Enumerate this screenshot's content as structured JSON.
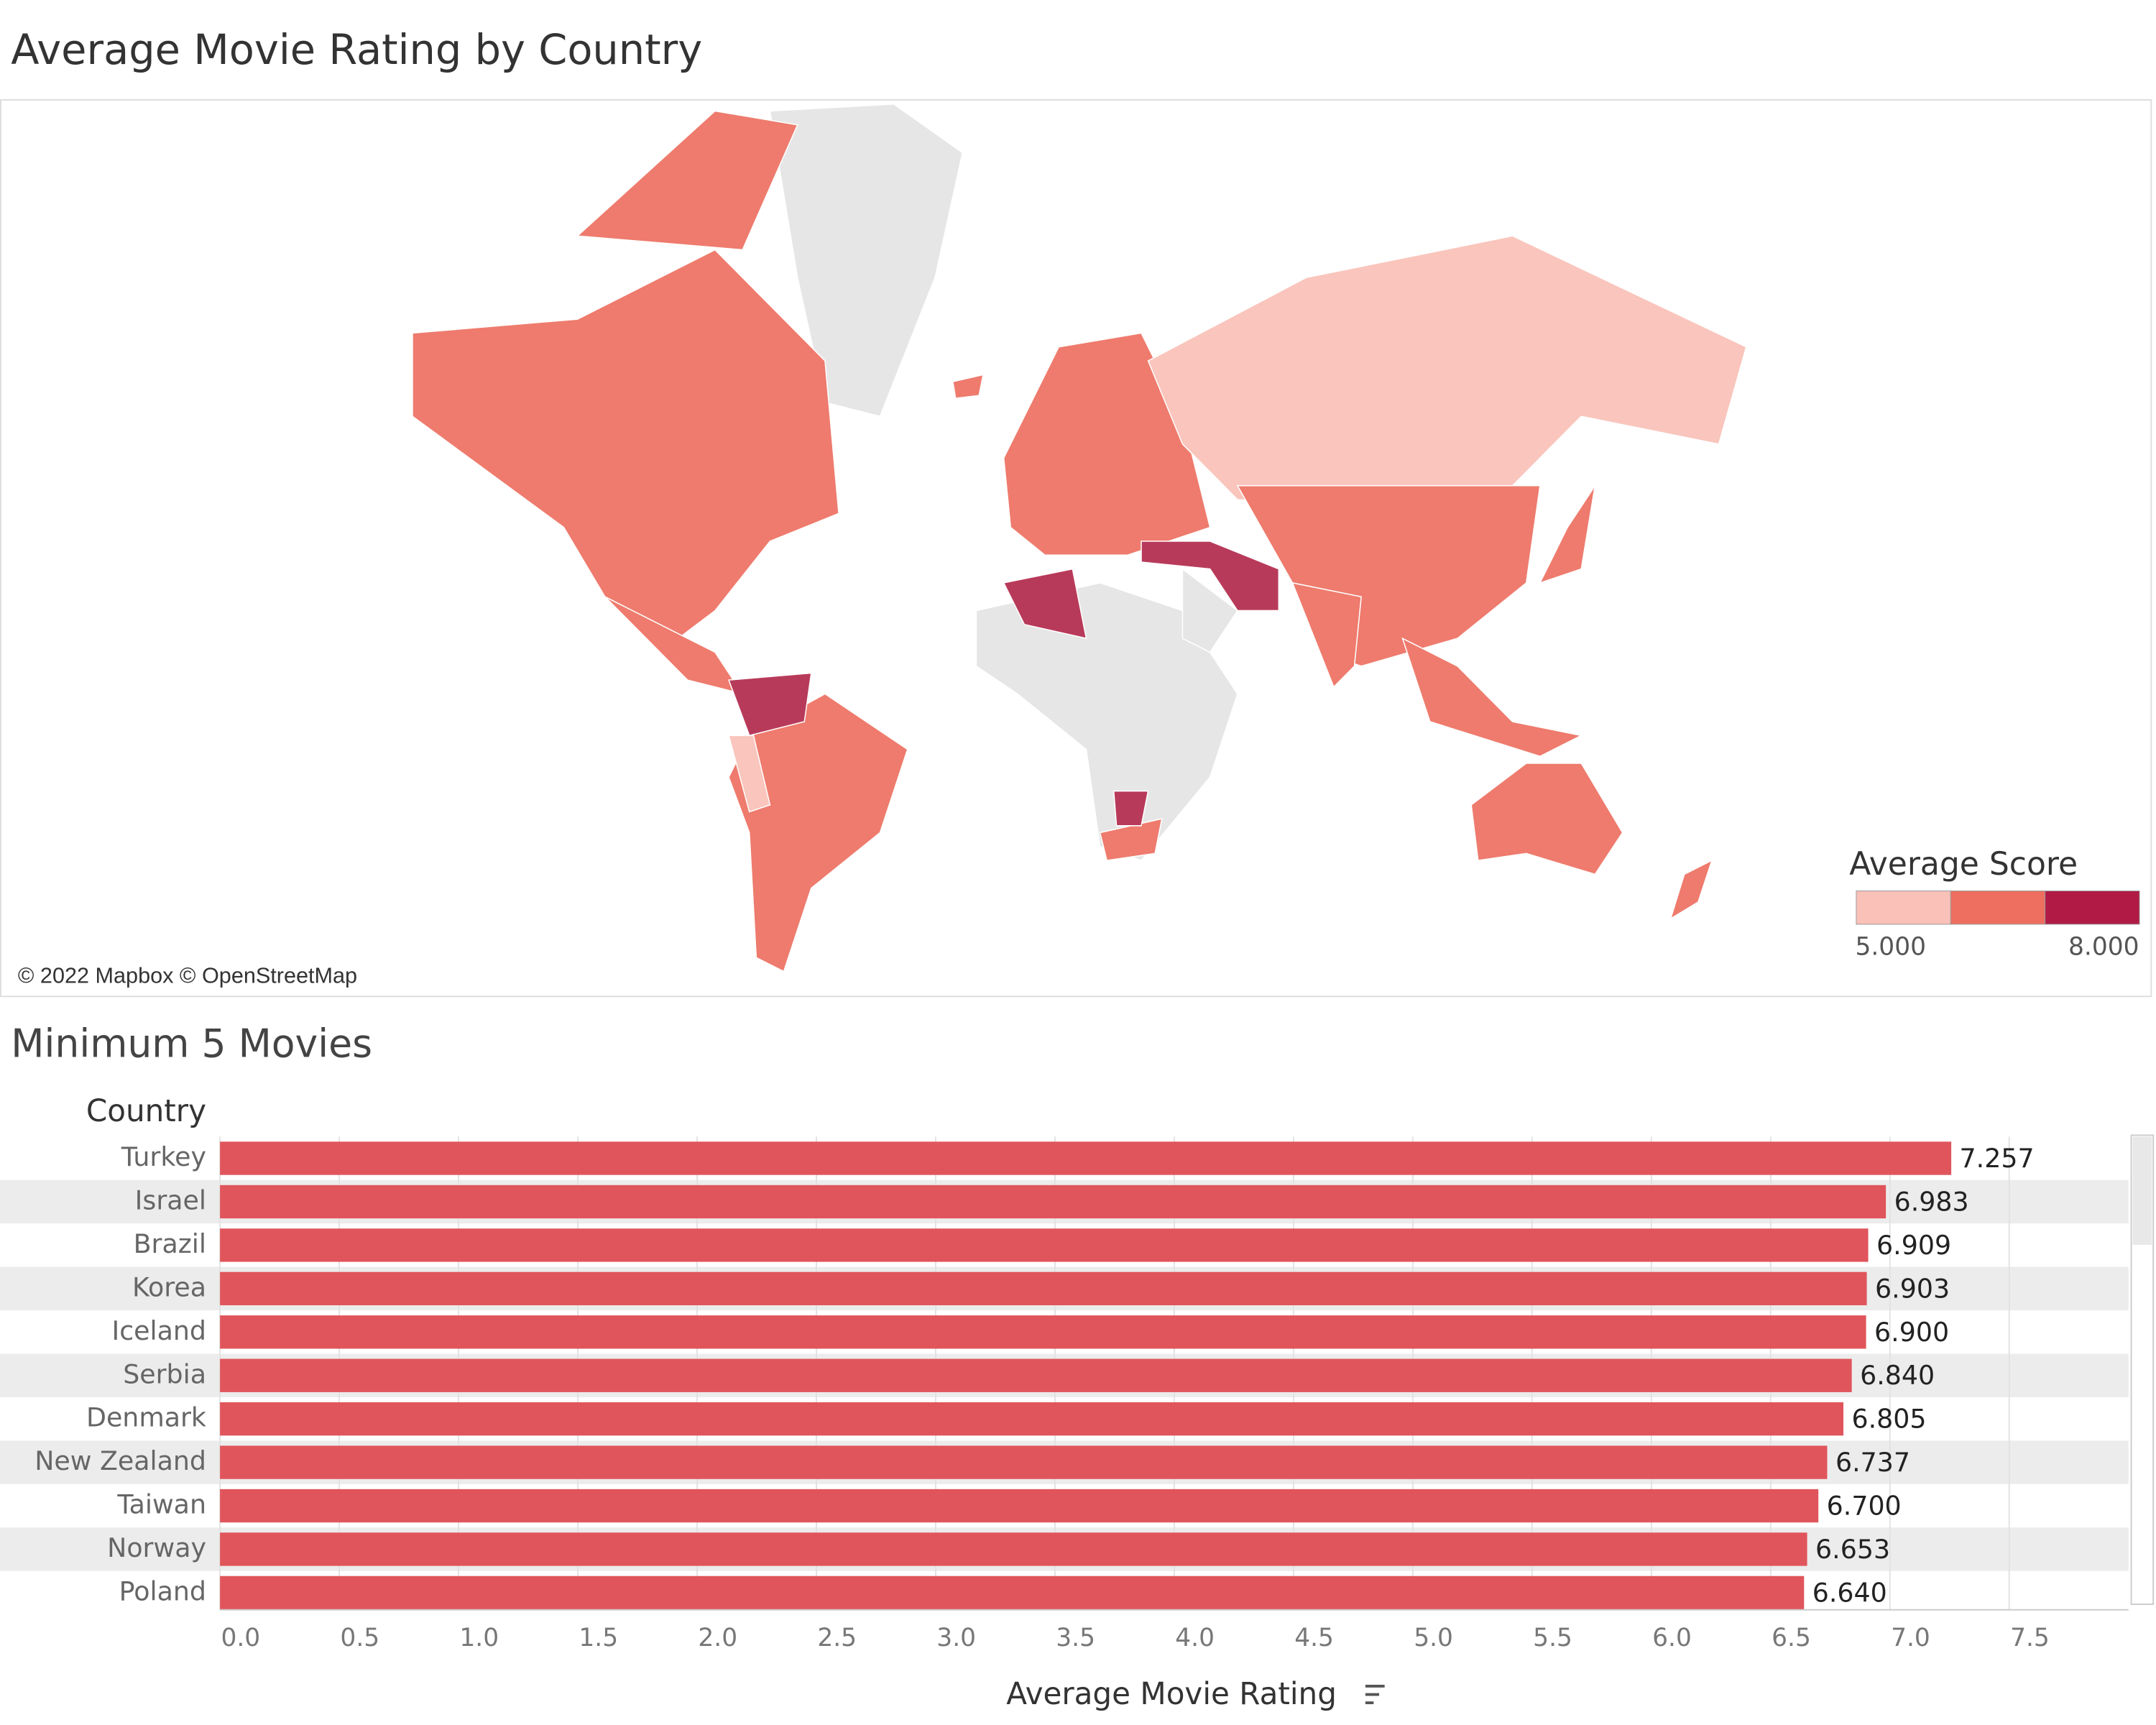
{
  "chart_data": [
    {
      "type": "choropleth",
      "title": "Average Movie Rating by Country",
      "attribution": "© 2022 Mapbox © OpenStreetMap",
      "legend_title": "Average Score",
      "legend_colors": [
        "#f9c1b8",
        "#ee6f5f",
        "#b01a45"
      ],
      "colorlim": [
        5,
        8
      ],
      "colorticks": [
        {
          "value": 5,
          "label": "5.000"
        },
        {
          "value": 8,
          "label": "8.000"
        }
      ]
    },
    {
      "type": "bar",
      "orientation": "horizontal",
      "title": "Minimum 5 Movies",
      "y_label": "Country",
      "x_label": "Average Movie Rating",
      "categories": [
        "Turkey",
        "Israel",
        "Brazil",
        "Korea",
        "Iceland",
        "Serbia",
        "Denmark",
        "New Zealand",
        "Taiwan",
        "Norway",
        "Poland"
      ],
      "values": [
        7.257,
        6.983,
        6.909,
        6.903,
        6.9,
        6.84,
        6.805,
        6.737,
        6.7,
        6.653,
        6.64
      ],
      "value_labels": [
        "7.257",
        "6.983",
        "6.909",
        "6.903",
        "6.900",
        "6.840",
        "6.805",
        "6.737",
        "6.700",
        "6.653",
        "6.640"
      ],
      "color": "#e0555b",
      "xlim": [
        0,
        8.0
      ],
      "grid": true,
      "xticks": [
        {
          "value": 0,
          "label": "0.0"
        },
        0.5,
        {
          "value": 1,
          "label": "1.0"
        },
        1.5,
        {
          "value": 2,
          "label": "2.0"
        },
        2.5,
        {
          "value": 3,
          "label": "3.0"
        },
        3.5,
        {
          "value": 4,
          "label": "4.0"
        },
        4.5,
        {
          "value": 5,
          "label": "5.0"
        },
        5.5,
        {
          "value": 6,
          "label": "6.0"
        },
        6.5,
        {
          "value": 7,
          "label": "7.0"
        },
        7.5
      ]
    }
  ]
}
